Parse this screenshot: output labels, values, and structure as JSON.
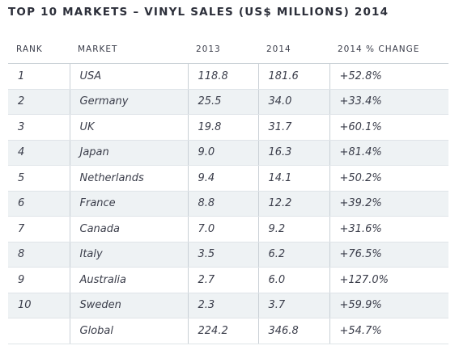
{
  "chart_data": {
    "type": "table",
    "title": "TOP 10 MARKETS – VINYL SALES (US$ MILLIONS) 2014",
    "columns": [
      "RANK",
      "MARKET",
      "2013",
      "2014",
      "2014 % CHANGE"
    ],
    "rows": [
      {
        "rank": "1",
        "market": "USA",
        "y2013": "118.8",
        "y2014": "181.6",
        "change": "+52.8%"
      },
      {
        "rank": "2",
        "market": "Germany",
        "y2013": "25.5",
        "y2014": "34.0",
        "change": "+33.4%"
      },
      {
        "rank": "3",
        "market": "UK",
        "y2013": "19.8",
        "y2014": "31.7",
        "change": "+60.1%"
      },
      {
        "rank": "4",
        "market": "Japan",
        "y2013": "9.0",
        "y2014": "16.3",
        "change": "+81.4%"
      },
      {
        "rank": "5",
        "market": "Netherlands",
        "y2013": "9.4",
        "y2014": "14.1",
        "change": "+50.2%"
      },
      {
        "rank": "6",
        "market": "France",
        "y2013": "8.8",
        "y2014": "12.2",
        "change": "+39.2%"
      },
      {
        "rank": "7",
        "market": "Canada",
        "y2013": "7.0",
        "y2014": "9.2",
        "change": "+31.6%"
      },
      {
        "rank": "8",
        "market": "Italy",
        "y2013": "3.5",
        "y2014": "6.2",
        "change": "+76.5%"
      },
      {
        "rank": "9",
        "market": "Australia",
        "y2013": "2.7",
        "y2014": "6.0",
        "change": "+127.0%"
      },
      {
        "rank": "10",
        "market": "Sweden",
        "y2013": "2.3",
        "y2014": "3.7",
        "change": "+59.9%"
      },
      {
        "rank": "",
        "market": "Global",
        "y2013": "224.2",
        "y2014": "346.8",
        "change": "+54.7%"
      }
    ]
  },
  "colors": {
    "text": "#3a3d4a",
    "row_shade": "#eef2f4",
    "rule": "#c9d0d6"
  }
}
